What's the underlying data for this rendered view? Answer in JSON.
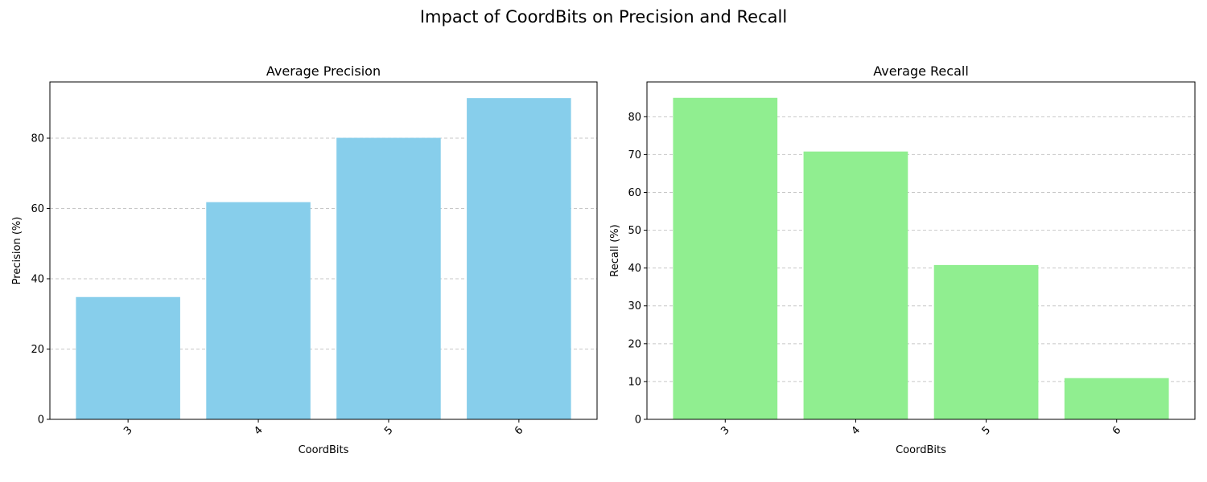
{
  "figure": {
    "suptitle": "Impact of CoordBits on Precision and Recall"
  },
  "chart_data": [
    {
      "type": "bar",
      "title": "Average Precision",
      "xlabel": "CoordBits",
      "ylabel": "Precision (%)",
      "categories": [
        "3",
        "4",
        "5",
        "6"
      ],
      "values": [
        34.8,
        61.8,
        80.1,
        91.4
      ],
      "ylim": [
        0,
        96
      ],
      "yticks": [
        0,
        20,
        40,
        60,
        80
      ],
      "color": "#87ceeb",
      "grid": "y-dashed",
      "xtick_rotation": 45
    },
    {
      "type": "bar",
      "title": "Average Recall",
      "xlabel": "CoordBits",
      "ylabel": "Recall (%)",
      "categories": [
        "3",
        "4",
        "5",
        "6"
      ],
      "values": [
        85.0,
        70.8,
        40.8,
        10.9
      ],
      "ylim": [
        0,
        89.2
      ],
      "yticks": [
        0,
        10,
        20,
        30,
        40,
        50,
        60,
        70,
        80
      ],
      "color": "#90ee90",
      "grid": "y-dashed",
      "xtick_rotation": 45
    }
  ]
}
